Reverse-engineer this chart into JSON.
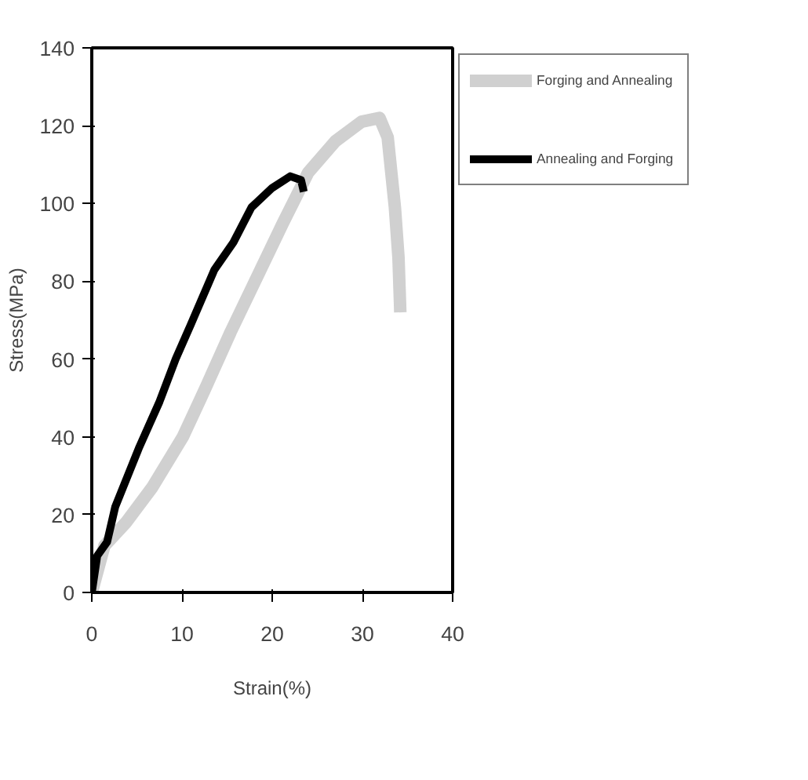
{
  "chart_data": {
    "type": "line",
    "xlabel": "Strain(%)",
    "ylabel": "Stress(MPa)",
    "xlim": [
      0,
      40
    ],
    "xticks": [
      0,
      10,
      20,
      30,
      40
    ],
    "ylim": [
      0,
      140
    ],
    "yticks": [
      0,
      20,
      40,
      60,
      80,
      100,
      120,
      140
    ],
    "grid": false,
    "legend": "right",
    "marker": "none",
    "line_style": "solid",
    "series": [
      {
        "name": "Forging and Annealing",
        "color": "#d0d0d0",
        "x": [
          0,
          1.4,
          3.8,
          6.7,
          10.1,
          12.5,
          15.4,
          18.3,
          21.2,
          24,
          27,
          29.9,
          31.9,
          32.8,
          33.6,
          34,
          34.2
        ],
        "values": [
          0,
          12,
          18,
          27,
          40,
          52,
          67,
          81,
          95,
          108,
          116,
          121,
          122,
          117,
          99,
          86,
          72
        ]
      },
      {
        "name": "Annealing and Forging",
        "color": "#000000",
        "x": [
          0,
          0.6,
          1.7,
          2.6,
          5.2,
          7.5,
          9.3,
          11,
          13.6,
          15.7,
          17.7,
          20,
          22,
          23.2,
          23.5
        ],
        "values": [
          0,
          9.4,
          13,
          22,
          37,
          49,
          60,
          69,
          83,
          90,
          99,
          104,
          107,
          106,
          103
        ]
      }
    ]
  }
}
